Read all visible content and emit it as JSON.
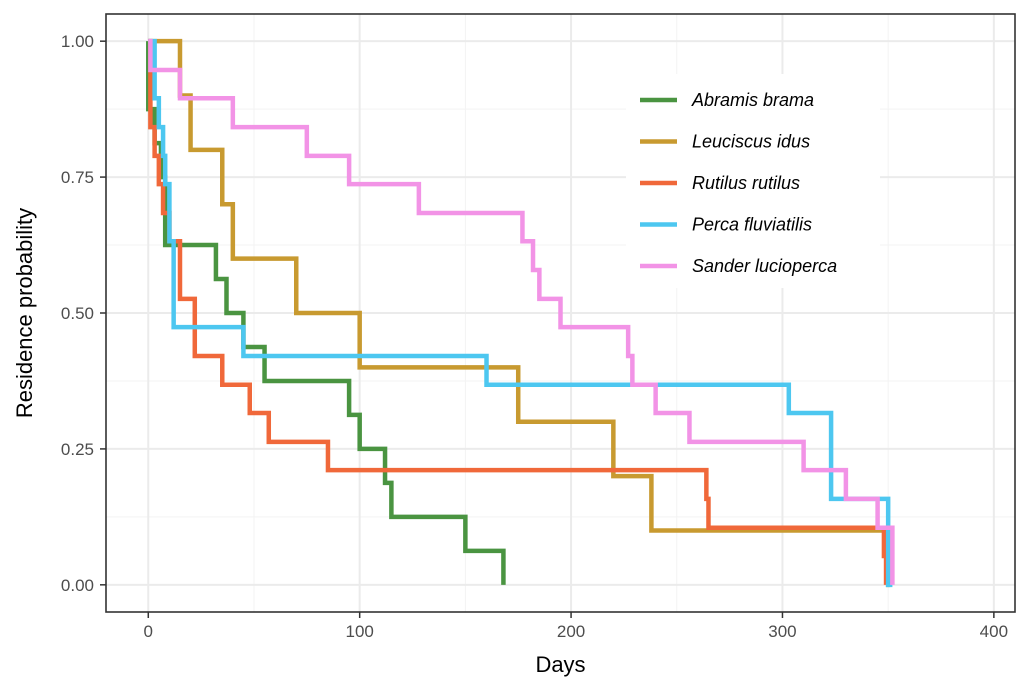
{
  "chart_data": {
    "type": "line",
    "title": "",
    "xlabel": "Days",
    "ylabel": "Residence probability",
    "xlim": [
      -20,
      410
    ],
    "ylim": [
      -0.05,
      1.05
    ],
    "xticks": [
      0,
      100,
      200,
      300,
      400
    ],
    "xtick_labels": [
      "0",
      "100",
      "200",
      "300",
      "400"
    ],
    "yticks": [
      0,
      0.25,
      0.5,
      0.75,
      1
    ],
    "ytick_labels": [
      "0.00",
      "0.25",
      "0.50",
      "0.75",
      "1.00"
    ],
    "grid": true,
    "legend_position": "top-right",
    "step": "post",
    "series": [
      {
        "name": "Abramis brama",
        "color": "#4a9441",
        "x": [
          0,
          0,
          3,
          6,
          8,
          32,
          37,
          45,
          50,
          55,
          95,
          100,
          112,
          113,
          115,
          150,
          160,
          168
        ],
        "y": [
          1.0,
          0.875,
          0.8125,
          0.75,
          0.625,
          0.5625,
          0.5,
          0.4375,
          0.4375,
          0.375,
          0.3125,
          0.25,
          0.1875,
          0.1875,
          0.125,
          0.0625,
          0.0625,
          0.0
        ]
      },
      {
        "name": "Leuciscus idus",
        "color": "#c89a30",
        "x": [
          0,
          15,
          20,
          35,
          40,
          45,
          70,
          100,
          102,
          175,
          220,
          221,
          238,
          350,
          351
        ],
        "y": [
          1.0,
          0.9,
          0.8,
          0.7,
          0.6,
          0.6,
          0.5,
          0.4,
          0.4,
          0.3,
          0.2,
          0.2,
          0.1,
          0.0,
          0.0
        ]
      },
      {
        "name": "Rutilus rutilus",
        "color": "#f0683a",
        "x": [
          0,
          1,
          3,
          5,
          7,
          10,
          15,
          22,
          35,
          48,
          57,
          85,
          264,
          265,
          348,
          349
        ],
        "y": [
          1.0,
          0.842,
          0.789,
          0.737,
          0.684,
          0.632,
          0.526,
          0.421,
          0.368,
          0.316,
          0.263,
          0.211,
          0.158,
          0.105,
          0.053,
          0.0
        ]
      },
      {
        "name": "Perca fluviatilis",
        "color": "#4dc7f0",
        "x": [
          0,
          3,
          5,
          7,
          8,
          10,
          12,
          45,
          47,
          160,
          162,
          303,
          305,
          323,
          350,
          352
        ],
        "y": [
          1.0,
          0.895,
          0.842,
          0.789,
          0.737,
          0.632,
          0.474,
          0.421,
          0.421,
          0.368,
          0.368,
          0.316,
          0.316,
          0.158,
          0.0,
          0.0
        ]
      },
      {
        "name": "Sander lucioperca",
        "color": "#f293e6",
        "x": [
          0,
          1,
          15,
          40,
          75,
          95,
          128,
          177,
          178,
          182,
          185,
          195,
          227,
          229,
          240,
          256,
          310,
          330,
          345,
          352
        ],
        "y": [
          1.0,
          0.947,
          0.895,
          0.842,
          0.789,
          0.737,
          0.684,
          0.632,
          0.632,
          0.579,
          0.526,
          0.474,
          0.421,
          0.368,
          0.316,
          0.263,
          0.211,
          0.158,
          0.105,
          0.0
        ]
      }
    ]
  }
}
